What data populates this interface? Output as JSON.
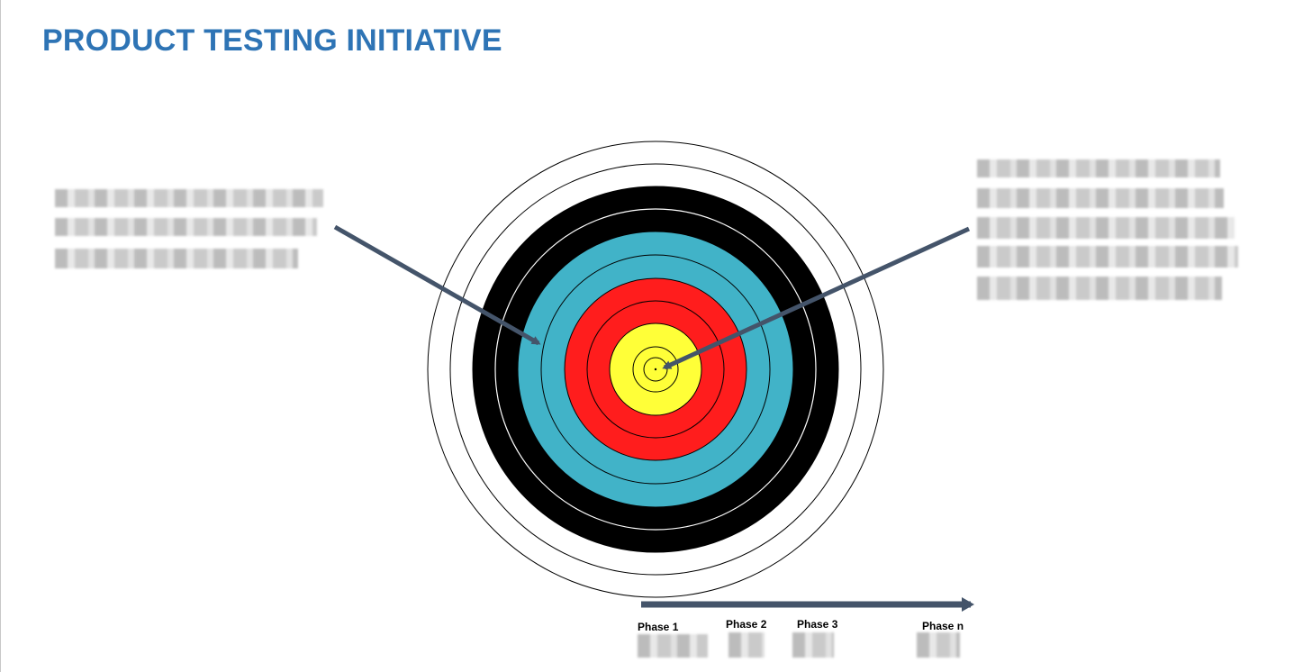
{
  "slide": {
    "title": "PRODUCT TESTING INITIATIVE"
  },
  "timeline": {
    "phases": [
      "Phase 1",
      "Phase 2",
      "Phase 3",
      "Phase n"
    ]
  },
  "colors": {
    "title": "#2e74b5",
    "arrow": "#44546a",
    "ring_outer_white": "#ffffff",
    "ring_black": "#000000",
    "ring_blue": "#41b3c8",
    "ring_red": "#ff1d1d",
    "ring_yellow": "#ffff38"
  }
}
